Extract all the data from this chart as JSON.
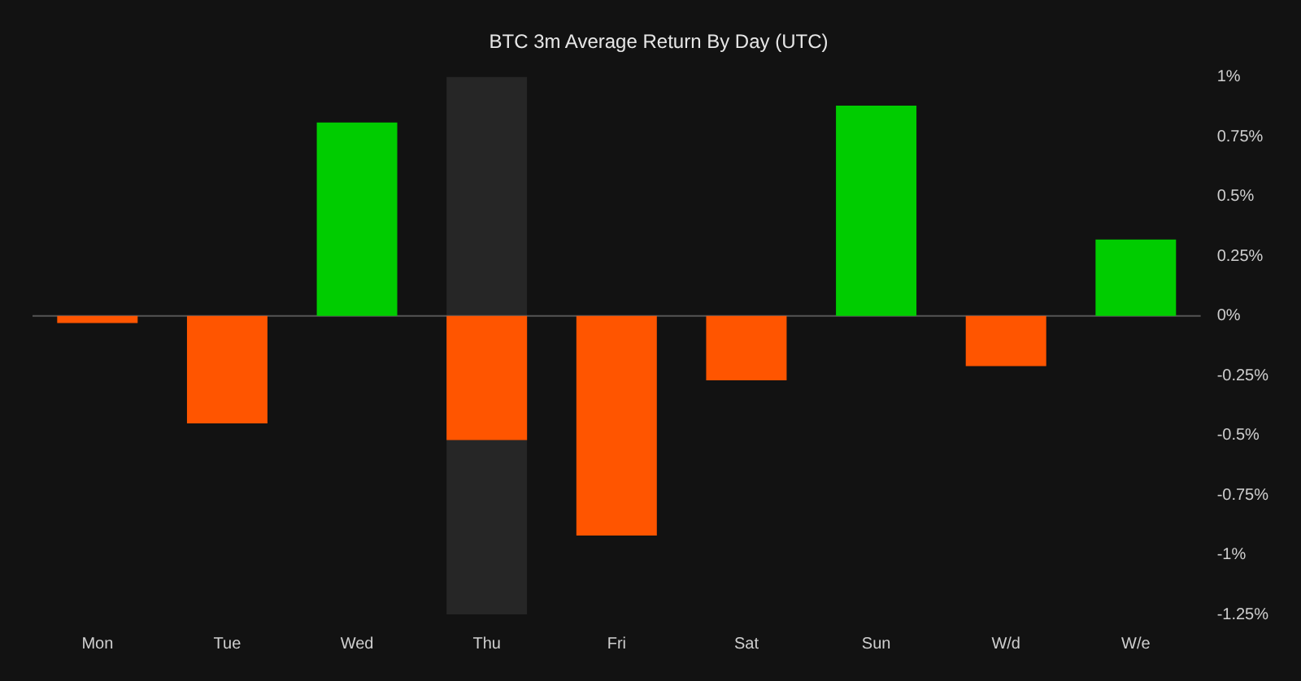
{
  "chart_data": {
    "type": "bar",
    "title": "BTC 3m Average Return By Day (UTC)",
    "categories": [
      "Mon",
      "Tue",
      "Wed",
      "Thu",
      "Fri",
      "Sat",
      "Sun",
      "W/d",
      "W/e"
    ],
    "values": [
      -0.03,
      -0.45,
      0.81,
      -0.52,
      -0.92,
      -0.27,
      0.88,
      -0.21,
      0.32
    ],
    "colors": [
      "#ff5500",
      "#ff5500",
      "#00cc00",
      "#ff5500",
      "#ff5500",
      "#ff5500",
      "#00cc00",
      "#ff5500",
      "#00cc00"
    ],
    "ylim": [
      -1.25,
      1
    ],
    "yticks": [
      {
        "value": 1,
        "label": "1%"
      },
      {
        "value": 0.75,
        "label": "0.75%"
      },
      {
        "value": 0.5,
        "label": "0.5%"
      },
      {
        "value": 0.25,
        "label": "0.25%"
      },
      {
        "value": 0,
        "label": "0%"
      },
      {
        "value": -0.25,
        "label": "-0.25%"
      },
      {
        "value": -0.5,
        "label": "-0.5%"
      },
      {
        "value": -0.75,
        "label": "-0.75%"
      },
      {
        "value": -1,
        "label": "-1%"
      },
      {
        "value": -1.25,
        "label": "-1.25%"
      }
    ],
    "bands": [
      {
        "axis": "x",
        "from": "Thu",
        "to": "Thu",
        "color": "#262626"
      }
    ],
    "ref_lines": [
      {
        "axis": "y",
        "value": 0,
        "color": "#555555"
      }
    ],
    "grid": false,
    "legend": false
  }
}
